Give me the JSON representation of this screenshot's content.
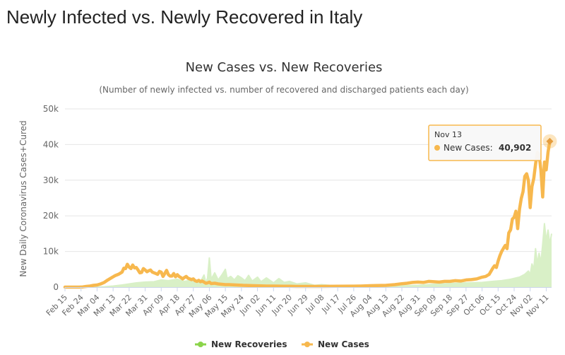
{
  "page": {
    "title": "Newly Infected vs. Newly Recovered in Italy"
  },
  "chart_data": {
    "type": "area",
    "title": "New Cases vs. New Recoveries",
    "subtitle": "(Number of newly infected vs. number of recovered and discharged patients each day)",
    "ylabel": "New Daily Coronavirus Cases+Cured",
    "xlabel": "",
    "ylim": [
      0,
      50000
    ],
    "y_ticks": [
      0,
      10000,
      20000,
      30000,
      40000,
      50000
    ],
    "y_tick_labels": [
      "0",
      "10k",
      "20k",
      "30k",
      "40k",
      "50k"
    ],
    "x_tick_labels": [
      "Feb 15",
      "Feb 24",
      "Mar 04",
      "Mar 13",
      "Mar 22",
      "Mar 31",
      "Apr 09",
      "Apr 18",
      "Apr 27",
      "May 06",
      "May 15",
      "May 24",
      "Jun 02",
      "Jun 11",
      "Jun 20",
      "Jun 29",
      "Jul 08",
      "Jul 17",
      "Jul 26",
      "Aug 04",
      "Aug 13",
      "Aug 22",
      "Aug 31",
      "Sep 09",
      "Sep 18",
      "Sep 27",
      "Oct 06",
      "Oct 15",
      "Oct 24",
      "Nov 02",
      "Nov 11"
    ],
    "x_tick_day_index": [
      0,
      9,
      18,
      27,
      36,
      45,
      54,
      63,
      72,
      81,
      90,
      99,
      108,
      117,
      126,
      135,
      144,
      153,
      162,
      171,
      180,
      189,
      198,
      207,
      216,
      225,
      234,
      243,
      252,
      261,
      270
    ],
    "x_day_range": [
      0,
      273
    ],
    "grid": true,
    "legend_position": "bottom-center",
    "series": [
      {
        "name": "New Recoveries",
        "color": "#8bd44a",
        "fill_color": "#d9f0c7",
        "style": "area",
        "points": [
          [
            0,
            0
          ],
          [
            10,
            0
          ],
          [
            18,
            50
          ],
          [
            22,
            100
          ],
          [
            27,
            300
          ],
          [
            32,
            600
          ],
          [
            36,
            900
          ],
          [
            40,
            1200
          ],
          [
            45,
            1400
          ],
          [
            50,
            1500
          ],
          [
            54,
            2000
          ],
          [
            58,
            1800
          ],
          [
            63,
            2200
          ],
          [
            67,
            1600
          ],
          [
            72,
            2000
          ],
          [
            76,
            1500
          ],
          [
            78,
            3400
          ],
          [
            79,
            1200
          ],
          [
            80,
            2500
          ],
          [
            81,
            8200
          ],
          [
            82,
            2200
          ],
          [
            84,
            4000
          ],
          [
            86,
            2000
          ],
          [
            88,
            3400
          ],
          [
            90,
            5000
          ],
          [
            91,
            2400
          ],
          [
            93,
            3000
          ],
          [
            95,
            2000
          ],
          [
            97,
            3200
          ],
          [
            99,
            2600
          ],
          [
            101,
            1800
          ],
          [
            103,
            3300
          ],
          [
            105,
            1700
          ],
          [
            108,
            2800
          ],
          [
            110,
            1500
          ],
          [
            113,
            2600
          ],
          [
            117,
            1200
          ],
          [
            120,
            2400
          ],
          [
            123,
            1300
          ],
          [
            126,
            1600
          ],
          [
            130,
            900
          ],
          [
            135,
            1200
          ],
          [
            140,
            500
          ],
          [
            144,
            700
          ],
          [
            153,
            300
          ],
          [
            162,
            250
          ],
          [
            171,
            300
          ],
          [
            180,
            250
          ],
          [
            189,
            350
          ],
          [
            198,
            500
          ],
          [
            207,
            800
          ],
          [
            216,
            1000
          ],
          [
            225,
            1200
          ],
          [
            234,
            1300
          ],
          [
            240,
            1600
          ],
          [
            245,
            1800
          ],
          [
            250,
            2200
          ],
          [
            255,
            2800
          ],
          [
            258,
            3600
          ],
          [
            260,
            4500
          ],
          [
            261,
            3500
          ],
          [
            262,
            6500
          ],
          [
            263,
            5000
          ],
          [
            264,
            10800
          ],
          [
            265,
            6500
          ],
          [
            266,
            9500
          ],
          [
            267,
            6800
          ],
          [
            268,
            12000
          ],
          [
            269,
            17800
          ],
          [
            270,
            13000
          ],
          [
            271,
            16000
          ],
          [
            272,
            12000
          ],
          [
            273,
            15000
          ]
        ]
      },
      {
        "name": "New Cases",
        "color": "#f7b84e",
        "fill_color": "#f7b84e",
        "style": "line",
        "points": [
          [
            0,
            0
          ],
          [
            5,
            0
          ],
          [
            8,
            5
          ],
          [
            10,
            50
          ],
          [
            12,
            200
          ],
          [
            14,
            300
          ],
          [
            16,
            500
          ],
          [
            18,
            600
          ],
          [
            20,
            900
          ],
          [
            22,
            1300
          ],
          [
            24,
            2000
          ],
          [
            26,
            2600
          ],
          [
            28,
            3200
          ],
          [
            30,
            3600
          ],
          [
            32,
            4200
          ],
          [
            33,
            5300
          ],
          [
            34,
            5200
          ],
          [
            35,
            6400
          ],
          [
            36,
            5600
          ],
          [
            37,
            5200
          ],
          [
            38,
            6200
          ],
          [
            39,
            5400
          ],
          [
            40,
            5500
          ],
          [
            41,
            4800
          ],
          [
            42,
            4000
          ],
          [
            43,
            4100
          ],
          [
            44,
            5200
          ],
          [
            45,
            4800
          ],
          [
            46,
            4300
          ],
          [
            47,
            4600
          ],
          [
            48,
            4800
          ],
          [
            49,
            4200
          ],
          [
            50,
            4000
          ],
          [
            51,
            3800
          ],
          [
            52,
            3600
          ],
          [
            53,
            4400
          ],
          [
            54,
            4200
          ],
          [
            55,
            3000
          ],
          [
            56,
            3800
          ],
          [
            57,
            4700
          ],
          [
            58,
            3500
          ],
          [
            59,
            3100
          ],
          [
            60,
            3100
          ],
          [
            61,
            3800
          ],
          [
            62,
            2900
          ],
          [
            63,
            3500
          ],
          [
            64,
            3000
          ],
          [
            65,
            2700
          ],
          [
            66,
            2300
          ],
          [
            67,
            2700
          ],
          [
            68,
            3000
          ],
          [
            69,
            2500
          ],
          [
            70,
            2300
          ],
          [
            71,
            2100
          ],
          [
            72,
            2300
          ],
          [
            73,
            1800
          ],
          [
            74,
            1600
          ],
          [
            75,
            1900
          ],
          [
            76,
            1500
          ],
          [
            77,
            1700
          ],
          [
            78,
            1400
          ],
          [
            79,
            1100
          ],
          [
            80,
            1200
          ],
          [
            81,
            1400
          ],
          [
            82,
            1000
          ],
          [
            84,
            1100
          ],
          [
            86,
            900
          ],
          [
            88,
            800
          ],
          [
            90,
            700
          ],
          [
            92,
            700
          ],
          [
            94,
            650
          ],
          [
            96,
            600
          ],
          [
            98,
            550
          ],
          [
            100,
            500
          ],
          [
            103,
            450
          ],
          [
            106,
            400
          ],
          [
            110,
            350
          ],
          [
            113,
            300
          ],
          [
            117,
            300
          ],
          [
            120,
            280
          ],
          [
            123,
            250
          ],
          [
            126,
            250
          ],
          [
            130,
            200
          ],
          [
            135,
            200
          ],
          [
            140,
            200
          ],
          [
            144,
            200
          ],
          [
            153,
            250
          ],
          [
            162,
            280
          ],
          [
            166,
            300
          ],
          [
            171,
            400
          ],
          [
            175,
            450
          ],
          [
            180,
            500
          ],
          [
            185,
            700
          ],
          [
            189,
            950
          ],
          [
            192,
            1100
          ],
          [
            195,
            1300
          ],
          [
            198,
            1400
          ],
          [
            201,
            1300
          ],
          [
            204,
            1600
          ],
          [
            207,
            1500
          ],
          [
            210,
            1400
          ],
          [
            213,
            1600
          ],
          [
            216,
            1600
          ],
          [
            219,
            1800
          ],
          [
            222,
            1700
          ],
          [
            225,
            2000
          ],
          [
            228,
            2100
          ],
          [
            231,
            2300
          ],
          [
            234,
            2800
          ],
          [
            236,
            3000
          ],
          [
            238,
            3600
          ],
          [
            240,
            5300
          ],
          [
            241,
            6000
          ],
          [
            242,
            5500
          ],
          [
            243,
            7300
          ],
          [
            244,
            8800
          ],
          [
            245,
            10000
          ],
          [
            246,
            10900
          ],
          [
            247,
            11700
          ],
          [
            248,
            10800
          ],
          [
            249,
            15200
          ],
          [
            250,
            16100
          ],
          [
            251,
            19100
          ],
          [
            252,
            19600
          ],
          [
            253,
            21300
          ],
          [
            254,
            16400
          ],
          [
            255,
            21900
          ],
          [
            256,
            24900
          ],
          [
            257,
            26800
          ],
          [
            258,
            31100
          ],
          [
            259,
            31800
          ],
          [
            260,
            29900
          ],
          [
            261,
            22300
          ],
          [
            262,
            28200
          ],
          [
            263,
            30500
          ],
          [
            264,
            34500
          ],
          [
            265,
            37800
          ],
          [
            266,
            37300
          ],
          [
            267,
            32800
          ],
          [
            268,
            25300
          ],
          [
            269,
            35100
          ],
          [
            270,
            32900
          ],
          [
            271,
            37900
          ],
          [
            272,
            40902
          ]
        ]
      }
    ],
    "tooltip": {
      "date": "Nov 13",
      "series_label": "New Cases:",
      "value_text": "40,902",
      "point_day_index": 272,
      "point_value": 40902
    }
  }
}
